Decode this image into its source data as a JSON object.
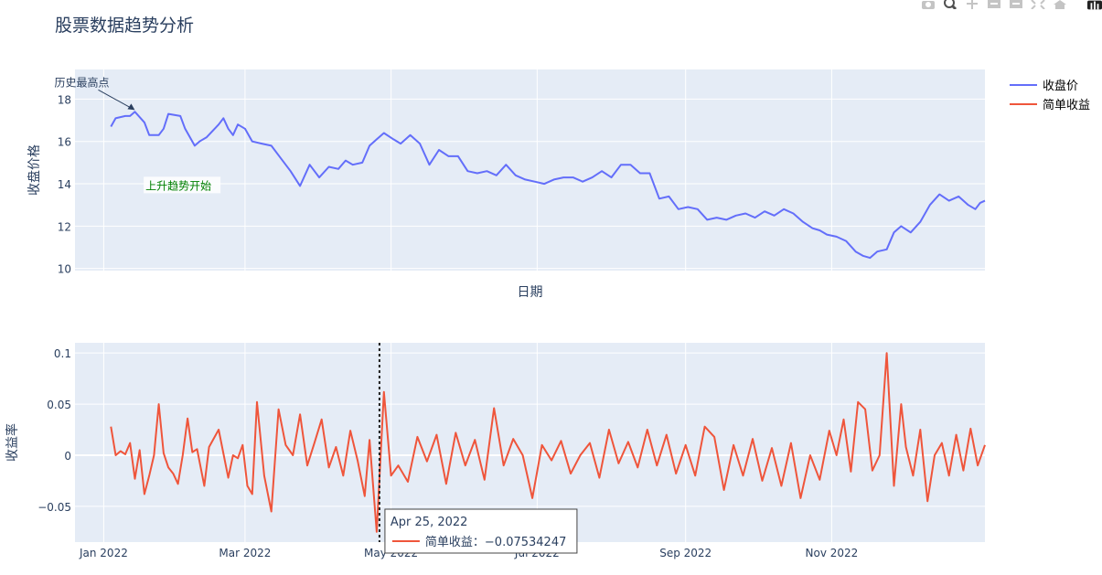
{
  "title": "股票数据趋势分析",
  "toolbar": {
    "buttons": [
      "camera-icon",
      "zoom-icon",
      "pan-icon",
      "zoom-in-icon",
      "zoom-out-icon",
      "autoscale-icon",
      "home-icon",
      "plotly-logo-icon"
    ],
    "icon_color": "#c4c4c4",
    "logo_color": "#222222"
  },
  "colors": {
    "price": "#636efa",
    "returns": "#ef553b",
    "plot_bg": "#e5ecf6",
    "grid": "#ffffff",
    "text": "#2a3f5f",
    "annotation_green": "#008000"
  },
  "chart_data": [
    {
      "type": "line",
      "title": "",
      "xlabel": "日期",
      "ylabel": "收盘价格",
      "ylim": [
        9.9,
        19.4
      ],
      "yticks": [
        10,
        12,
        14,
        16,
        18
      ],
      "x_range": [
        "2021-12-20",
        "2023-01-04"
      ],
      "grid": true,
      "series": [
        {
          "name": "收盘价",
          "x": [
            "2022-01-04",
            "2022-01-06",
            "2022-01-10",
            "2022-01-12",
            "2022-01-14",
            "2022-01-18",
            "2022-01-20",
            "2022-01-24",
            "2022-01-26",
            "2022-01-28",
            "2022-02-02",
            "2022-02-04",
            "2022-02-08",
            "2022-02-10",
            "2022-02-13",
            "2022-02-18",
            "2022-02-20",
            "2022-02-22",
            "2022-02-24",
            "2022-02-26",
            "2022-03-01",
            "2022-03-04",
            "2022-03-08",
            "2022-03-12",
            "2022-03-16",
            "2022-03-20",
            "2022-03-24",
            "2022-03-28",
            "2022-04-01",
            "2022-04-05",
            "2022-04-09",
            "2022-04-12",
            "2022-04-15",
            "2022-04-19",
            "2022-04-22",
            "2022-04-25",
            "2022-04-28",
            "2022-05-02",
            "2022-05-05",
            "2022-05-09",
            "2022-05-13",
            "2022-05-17",
            "2022-05-21",
            "2022-05-25",
            "2022-05-29",
            "2022-06-02",
            "2022-06-06",
            "2022-06-10",
            "2022-06-14",
            "2022-06-18",
            "2022-06-22",
            "2022-06-26",
            "2022-06-30",
            "2022-07-04",
            "2022-07-08",
            "2022-07-12",
            "2022-07-16",
            "2022-07-20",
            "2022-07-24",
            "2022-07-28",
            "2022-08-01",
            "2022-08-05",
            "2022-08-09",
            "2022-08-13",
            "2022-08-17",
            "2022-08-21",
            "2022-08-25",
            "2022-08-29",
            "2022-09-02",
            "2022-09-06",
            "2022-09-10",
            "2022-09-14",
            "2022-09-18",
            "2022-09-22",
            "2022-09-26",
            "2022-09-30",
            "2022-10-04",
            "2022-10-08",
            "2022-10-12",
            "2022-10-16",
            "2022-10-20",
            "2022-10-24",
            "2022-10-27",
            "2022-10-30",
            "2022-11-03",
            "2022-11-07",
            "2022-11-11",
            "2022-11-14",
            "2022-11-17",
            "2022-11-20",
            "2022-11-24",
            "2022-11-27",
            "2022-11-30",
            "2022-12-04",
            "2022-12-08",
            "2022-12-12",
            "2022-12-16",
            "2022-12-20",
            "2022-12-24",
            "2022-12-28",
            "2022-12-31",
            "2023-01-02",
            "2023-01-04"
          ],
          "y": [
            16.7,
            17.1,
            17.2,
            17.2,
            17.4,
            16.9,
            16.3,
            16.3,
            16.6,
            17.3,
            17.2,
            16.6,
            15.8,
            16.0,
            16.2,
            16.8,
            17.1,
            16.6,
            16.3,
            16.8,
            16.6,
            16.0,
            15.9,
            15.8,
            15.2,
            14.6,
            13.9,
            14.9,
            14.3,
            14.8,
            14.7,
            15.1,
            14.9,
            15.0,
            15.8,
            16.1,
            16.4,
            16.1,
            15.9,
            16.3,
            15.9,
            14.9,
            15.6,
            15.3,
            15.3,
            14.6,
            14.5,
            14.6,
            14.4,
            14.9,
            14.4,
            14.2,
            14.1,
            14.0,
            14.2,
            14.3,
            14.3,
            14.1,
            14.3,
            14.6,
            14.3,
            14.9,
            14.9,
            14.5,
            14.5,
            13.3,
            13.4,
            12.8,
            12.9,
            12.8,
            12.3,
            12.4,
            12.3,
            12.5,
            12.6,
            12.4,
            12.7,
            12.5,
            12.8,
            12.6,
            12.2,
            11.9,
            11.8,
            11.6,
            11.5,
            11.3,
            10.8,
            10.6,
            10.5,
            10.8,
            10.9,
            11.7,
            12.0,
            11.7,
            12.2,
            13.0,
            13.5,
            13.2,
            13.4,
            13.0,
            12.8,
            13.1,
            13.2
          ]
        }
      ],
      "annotations": [
        {
          "text": "历史最高点",
          "x": "2022-01-14",
          "y": 17.4,
          "arrow": true
        },
        {
          "text": "上升趋势开始",
          "x": "2022-01-20",
          "y": 13.9,
          "arrow": false
        }
      ]
    },
    {
      "type": "line",
      "title": "",
      "xlabel": "",
      "ylabel": "收益率",
      "ylim": [
        -0.085,
        0.11
      ],
      "yticks": [
        -0.05,
        0,
        0.05,
        0.1
      ],
      "ytick_labels": [
        "−0.05",
        "0",
        "0.05",
        "0.1"
      ],
      "xticks": [
        "2022-01-01",
        "2022-03-01",
        "2022-05-01",
        "2022-07-01",
        "2022-09-01",
        "2022-11-01"
      ],
      "xtick_labels": [
        "Jan 2022",
        "Mar 2022",
        "May 2022",
        "Jul 2022",
        "Sep 2022",
        "Nov 2022"
      ],
      "x_range": [
        "2021-12-20",
        "2023-01-04"
      ],
      "grid": true,
      "series": [
        {
          "name": "简单收益",
          "x": [
            "2022-01-04",
            "2022-01-06",
            "2022-01-08",
            "2022-01-10",
            "2022-01-12",
            "2022-01-14",
            "2022-01-16",
            "2022-01-18",
            "2022-01-20",
            "2022-01-22",
            "2022-01-24",
            "2022-01-26",
            "2022-01-28",
            "2022-01-30",
            "2022-02-01",
            "2022-02-03",
            "2022-02-05",
            "2022-02-07",
            "2022-02-09",
            "2022-02-12",
            "2022-02-14",
            "2022-02-18",
            "2022-02-22",
            "2022-02-24",
            "2022-02-26",
            "2022-02-28",
            "2022-03-02",
            "2022-03-04",
            "2022-03-06",
            "2022-03-09",
            "2022-03-12",
            "2022-03-15",
            "2022-03-18",
            "2022-03-21",
            "2022-03-24",
            "2022-03-27",
            "2022-03-30",
            "2022-04-02",
            "2022-04-05",
            "2022-04-08",
            "2022-04-11",
            "2022-04-14",
            "2022-04-17",
            "2022-04-20",
            "2022-04-22",
            "2022-04-25",
            "2022-04-28",
            "2022-05-01",
            "2022-05-04",
            "2022-05-08",
            "2022-05-12",
            "2022-05-16",
            "2022-05-20",
            "2022-05-24",
            "2022-05-28",
            "2022-06-01",
            "2022-06-05",
            "2022-06-09",
            "2022-06-13",
            "2022-06-17",
            "2022-06-21",
            "2022-06-25",
            "2022-06-29",
            "2022-07-03",
            "2022-07-07",
            "2022-07-11",
            "2022-07-15",
            "2022-07-19",
            "2022-07-23",
            "2022-07-27",
            "2022-07-31",
            "2022-08-04",
            "2022-08-08",
            "2022-08-12",
            "2022-08-16",
            "2022-08-20",
            "2022-08-24",
            "2022-08-28",
            "2022-09-01",
            "2022-09-05",
            "2022-09-09",
            "2022-09-13",
            "2022-09-17",
            "2022-09-21",
            "2022-09-25",
            "2022-09-29",
            "2022-10-03",
            "2022-10-07",
            "2022-10-11",
            "2022-10-15",
            "2022-10-19",
            "2022-10-23",
            "2022-10-27",
            "2022-10-31",
            "2022-11-03",
            "2022-11-06",
            "2022-11-09",
            "2022-11-12",
            "2022-11-15",
            "2022-11-18",
            "2022-11-21",
            "2022-11-24",
            "2022-11-27",
            "2022-11-30",
            "2022-12-02",
            "2022-12-05",
            "2022-12-08",
            "2022-12-11",
            "2022-12-14",
            "2022-12-17",
            "2022-12-20",
            "2022-12-23",
            "2022-12-26",
            "2022-12-29",
            "2023-01-01",
            "2023-01-04"
          ],
          "y": [
            0.028,
            0.0,
            0.004,
            0.001,
            0.012,
            -0.023,
            0.005,
            -0.038,
            -0.02,
            0.0,
            0.05,
            0.002,
            -0.012,
            -0.018,
            -0.028,
            0.0,
            0.036,
            0.003,
            0.006,
            -0.03,
            0.008,
            0.025,
            -0.022,
            0.0,
            -0.003,
            0.01,
            -0.03,
            -0.038,
            0.052,
            -0.02,
            -0.055,
            0.045,
            0.01,
            0.0,
            0.04,
            -0.01,
            0.012,
            0.035,
            -0.012,
            0.008,
            -0.02,
            0.024,
            -0.005,
            -0.04,
            0.015,
            -0.075,
            0.062,
            -0.02,
            -0.01,
            -0.026,
            0.018,
            -0.006,
            0.02,
            -0.028,
            0.022,
            -0.01,
            0.015,
            -0.024,
            0.046,
            -0.01,
            0.016,
            0.0,
            -0.042,
            0.01,
            -0.005,
            0.014,
            -0.018,
            0.0,
            0.012,
            -0.022,
            0.025,
            -0.008,
            0.013,
            -0.012,
            0.025,
            -0.01,
            0.02,
            -0.018,
            0.01,
            -0.02,
            0.028,
            0.018,
            -0.034,
            0.01,
            -0.02,
            0.016,
            -0.025,
            0.007,
            -0.03,
            0.012,
            -0.042,
            0.0,
            -0.024,
            0.024,
            0.0,
            0.035,
            -0.016,
            0.052,
            0.045,
            -0.015,
            0.0,
            0.1,
            -0.03,
            0.05,
            0.008,
            -0.02,
            0.025,
            -0.045,
            0.0,
            0.012,
            -0.02,
            0.02,
            -0.015,
            0.026,
            -0.01,
            0.01
          ]
        }
      ],
      "hover": {
        "x": "2022-04-25",
        "title": "Apr 25, 2022",
        "label": "简单收益：−0.07534247"
      }
    }
  ]
}
